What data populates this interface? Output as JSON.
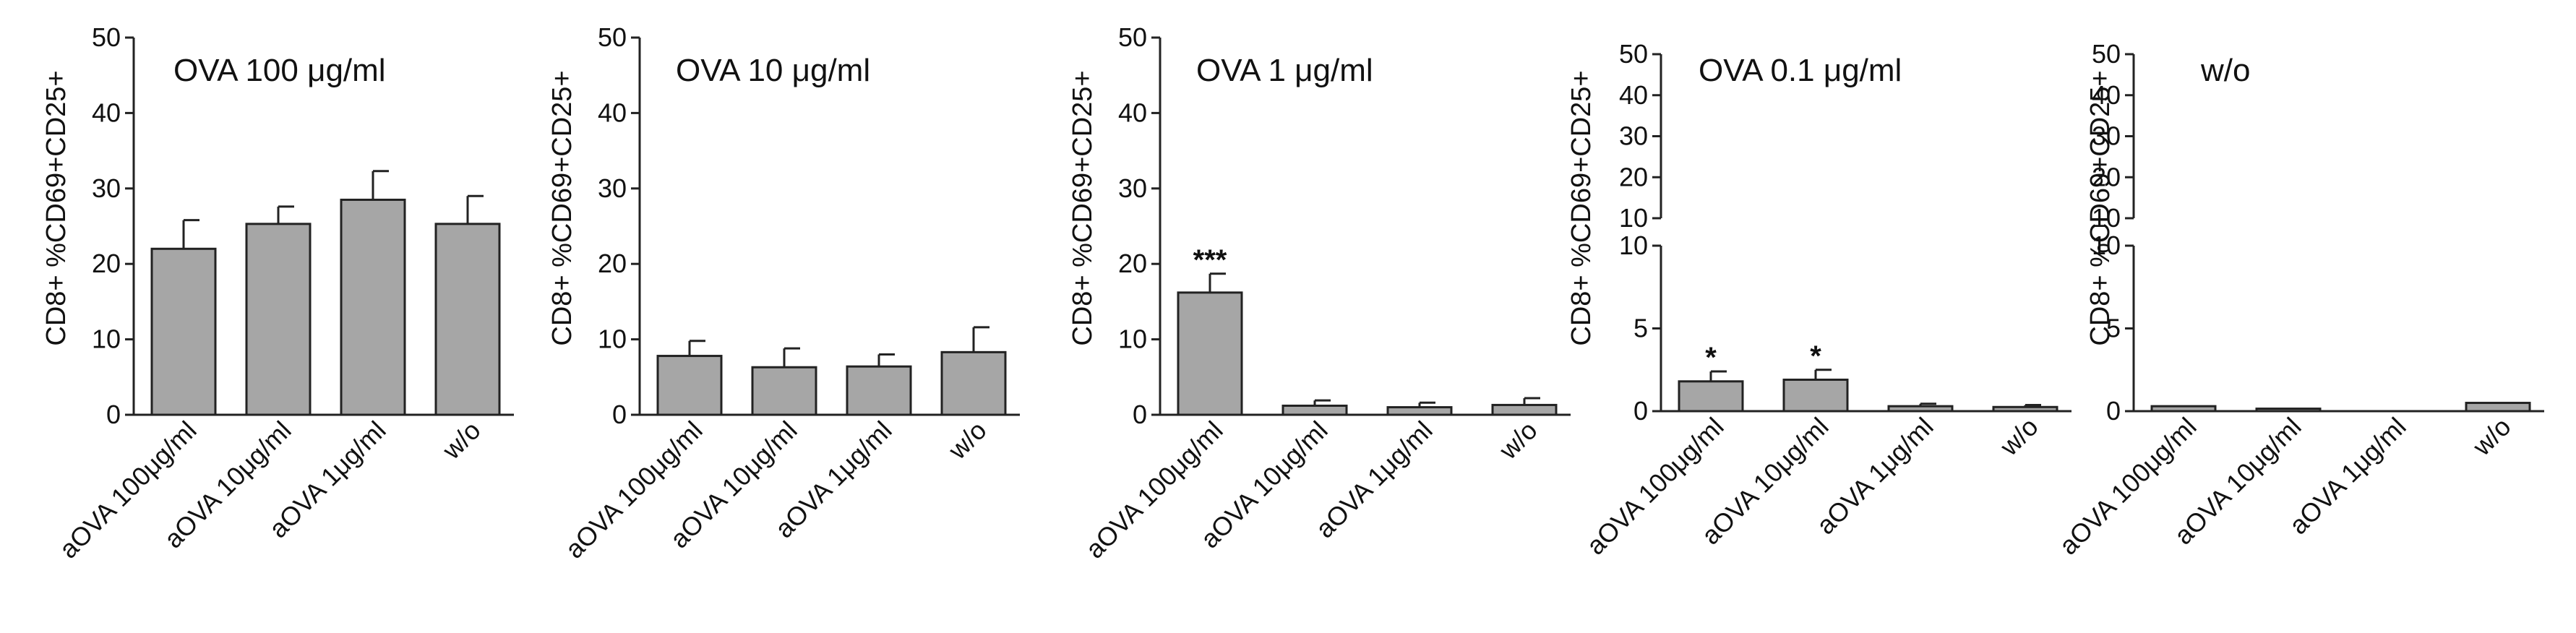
{
  "chart_data": [
    {
      "type": "bar",
      "title": "OVA 100 μg/ml",
      "ylabel": "CD8+ %CD69+CD25+",
      "xlabel": "",
      "categories": [
        "aOVA 100μg/ml",
        "aOVA 10μg/ml",
        "aOVA 1μg/ml",
        "w/o"
      ],
      "values": [
        22,
        25.3,
        28.5,
        25.3
      ],
      "errors": [
        3.8,
        2.3,
        3.8,
        3.7
      ],
      "significance": [
        "",
        "",
        "",
        ""
      ],
      "ylim": [
        0,
        50
      ],
      "yticks": [
        "0",
        "10",
        "20",
        "30",
        "40",
        "50"
      ],
      "bar_color": "#a6a6a6"
    },
    {
      "type": "bar",
      "title": "OVA 10 μg/ml",
      "ylabel": "CD8+ %CD69+CD25+",
      "xlabel": "",
      "categories": [
        "aOVA 100μg/ml",
        "aOVA 10μg/ml",
        "aOVA 1μg/ml",
        "w/o"
      ],
      "values": [
        7.8,
        6.3,
        6.4,
        8.3
      ],
      "errors": [
        2,
        2.5,
        1.6,
        3.3
      ],
      "significance": [
        "",
        "",
        "",
        ""
      ],
      "ylim": [
        0,
        50
      ],
      "yticks": [
        "0",
        "10",
        "20",
        "30",
        "40",
        "50"
      ],
      "bar_color": "#a6a6a6"
    },
    {
      "type": "bar",
      "title": "OVA 1 μg/ml",
      "ylabel": "CD8+ %CD69+CD25+",
      "xlabel": "",
      "categories": [
        "aOVA 100μg/ml",
        "aOVA 10μg/ml",
        "aOVA 1μg/ml",
        "w/o"
      ],
      "values": [
        16.2,
        1.2,
        1,
        1.3
      ],
      "errors": [
        2.5,
        0.7,
        0.6,
        0.9
      ],
      "significance": [
        "***",
        "",
        "",
        ""
      ],
      "ylim": [
        0,
        50
      ],
      "yticks": [
        "0",
        "10",
        "20",
        "30",
        "40",
        "50"
      ],
      "bar_color": "#a6a6a6"
    },
    {
      "type": "bar",
      "title": "OVA 0.1 μg/ml",
      "ylabel": "CD8+ %CD69+CD25+",
      "xlabel": "",
      "categories": [
        "aOVA 100μg/ml",
        "aOVA 10μg/ml",
        "aOVA 1μg/ml",
        "w/o"
      ],
      "values": [
        1.8,
        1.9,
        0.3,
        0.25
      ],
      "errors": [
        0.6,
        0.6,
        0.15,
        0.12
      ],
      "significance": [
        "*",
        "*",
        "",
        ""
      ],
      "ylim": [
        0,
        50
      ],
      "axis_break": {
        "lower_range": [
          0,
          10
        ],
        "upper_range": [
          10,
          50
        ]
      },
      "yticks_lower": [
        "0",
        "5",
        "10"
      ],
      "yticks_upper": [
        "10",
        "20",
        "30",
        "40",
        "50"
      ],
      "bar_color": "#a6a6a6"
    },
    {
      "type": "bar",
      "title": "w/o",
      "ylabel": "CD8+ %CD69+CD25+",
      "xlabel": "",
      "categories": [
        "aOVA 100μg/ml",
        "aOVA 10μg/ml",
        "aOVA 1μg/ml",
        "w/o"
      ],
      "values": [
        0.3,
        0.15,
        0,
        0.5
      ],
      "errors": [
        0,
        0,
        0,
        0
      ],
      "significance": [
        "",
        "",
        "",
        ""
      ],
      "ylim": [
        0,
        50
      ],
      "axis_break": {
        "lower_range": [
          0,
          10
        ],
        "upper_range": [
          10,
          50
        ]
      },
      "yticks_lower": [
        "0",
        "5",
        "10"
      ],
      "yticks_upper": [
        "10",
        "20",
        "30",
        "40",
        "50"
      ],
      "bar_color": "#a6a6a6"
    }
  ]
}
